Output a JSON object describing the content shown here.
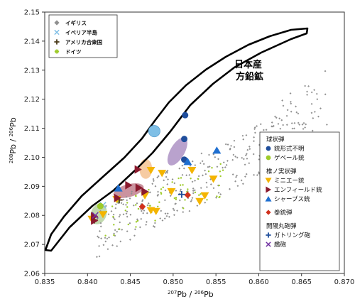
{
  "chart_data": {
    "type": "scatter",
    "title": "",
    "xlabel_sup": "207",
    "xlabel_mid": "Pb / ",
    "xlabel_sup2": "206",
    "xlabel_end": "Pb",
    "ylabel_sup": "208",
    "ylabel_mid": "Pb / ",
    "ylabel_sup2": "206",
    "ylabel_end": "Pb",
    "xlim": [
      0.835,
      0.87
    ],
    "ylim": [
      2.06,
      2.15
    ],
    "xticks": [
      "0.835",
      "0.840",
      "0.845",
      "0.850",
      "0.855",
      "0.860",
      "0.865",
      "0.870"
    ],
    "yticks": [
      "2.06",
      "2.07",
      "2.08",
      "2.09",
      "2.10",
      "2.11",
      "2.12",
      "2.13",
      "2.14",
      "2.15"
    ],
    "region_label_line1": "日本産",
    "region_label_line2": "方鉛鉱",
    "legend_top": [
      {
        "label": "イギリス",
        "color": "#909090",
        "marker": "diamond"
      },
      {
        "label": "イベリア半島",
        "color": "#7fbfe6",
        "marker": "x"
      },
      {
        "label": "アメリカ合衆国",
        "color": "#4a3a1a",
        "marker": "plus"
      },
      {
        "label": "ドイツ",
        "color": "#9ecb2a",
        "marker": "asterisk"
      }
    ],
    "legend_bottom": {
      "group1_title": "球状弾",
      "group1": [
        {
          "label": "銃形式不明",
          "color": "#1f4e9c",
          "marker": "circle"
        },
        {
          "label": "ゲベール銃",
          "color": "#9ecb2a",
          "marker": "circle"
        }
      ],
      "group2_title": "椎ノ実状弾",
      "group2": [
        {
          "label": "ミニエー銃",
          "color": "#f4b400",
          "marker": "triangle-down"
        },
        {
          "label": "エンフィールド銃",
          "color": "#8b1a2e",
          "marker": "triangle-right"
        },
        {
          "label": "シャープス銃",
          "color": "#1f6fd0",
          "marker": "triangle-up"
        }
      ],
      "group3": [
        {
          "label": "拳銃弾",
          "color": "#d0301c",
          "marker": "diamond"
        }
      ],
      "group4_title": "開陽丸砲弾",
      "group4": [
        {
          "label": "ガトリング砲",
          "color": "#1f4e9c",
          "marker": "plus"
        },
        {
          "label": "艦砲",
          "color": "#7030a0",
          "marker": "x"
        }
      ]
    },
    "series": [
      {
        "name": "イギリス",
        "color": "#909090",
        "marker": "diamond",
        "cluster": {
          "seed": 11,
          "n": 340
        }
      },
      {
        "name": "ドイツ",
        "color": "#9ecb2a",
        "marker": "asterisk",
        "cluster": {
          "seed": 29,
          "n": 60
        }
      },
      {
        "name": "イベリア半島",
        "color": "#7fbfe6",
        "marker": "x",
        "points": [
          [
            0.8418,
            2.0835
          ]
        ]
      },
      {
        "name": "アメリカ合衆国",
        "color": "#4a3a1a",
        "marker": "plus",
        "points": [
          [
            0.8408,
            2.0784
          ],
          [
            0.8437,
            2.0853
          ]
        ]
      },
      {
        "name": "銃形式不明",
        "color": "#1f4e9c",
        "marker": "circle",
        "points": [
          [
            0.8514,
            2.1145
          ],
          [
            0.8513,
            2.1063
          ],
          [
            0.8513,
            2.0992
          ]
        ]
      },
      {
        "name": "ゲベール銃",
        "color": "#9ecb2a",
        "marker": "circle",
        "points": [
          [
            0.8415,
            2.0832
          ]
        ]
      },
      {
        "name": "ミニエー銃",
        "color": "#f4b400",
        "marker": "triangle-down",
        "points": [
          [
            0.8474,
            2.0955
          ],
          [
            0.8487,
            2.0945
          ],
          [
            0.8498,
            2.0882
          ],
          [
            0.8522,
            2.0955
          ],
          [
            0.8547,
            2.0925
          ],
          [
            0.8537,
            2.0868
          ],
          [
            0.8531,
            2.0848
          ],
          [
            0.848,
            2.0814
          ],
          [
            0.8474,
            2.0817
          ],
          [
            0.8467,
            2.0868
          ],
          [
            0.8434,
            2.0855
          ],
          [
            0.8418,
            2.0803
          ],
          [
            0.8405,
            2.0787
          ]
        ]
      },
      {
        "name": "エンフィールド銃",
        "color": "#8b1a2e",
        "marker": "triangle-right",
        "points": [
          [
            0.8459,
            2.0958
          ],
          [
            0.8448,
            2.0904
          ],
          [
            0.846,
            2.0895
          ],
          [
            0.8467,
            2.0882
          ],
          [
            0.8435,
            2.086
          ],
          [
            0.8408,
            2.0782
          ],
          [
            0.8408,
            2.0797
          ]
        ]
      },
      {
        "name": "シャープス銃",
        "color": "#1f6fd0",
        "marker": "triangle-up",
        "points": [
          [
            0.8436,
            2.0894
          ],
          [
            0.8551,
            2.1024
          ],
          [
            0.8517,
            2.0985
          ]
        ]
      },
      {
        "name": "拳銃弾",
        "color": "#d0301c",
        "marker": "diamond",
        "points": [
          [
            0.8517,
            2.087
          ],
          [
            0.8464,
            2.083
          ]
        ]
      },
      {
        "name": "ガトリング砲",
        "color": "#1f4e9c",
        "marker": "plus",
        "points": [
          [
            0.851,
            2.0872
          ]
        ]
      },
      {
        "name": "艦砲",
        "color": "#7030a0",
        "marker": "x",
        "points": [
          [
            0.8409,
            2.08
          ]
        ]
      },
      {
        "name": "イベリア半島",
        "color": "#7fbfe6",
        "marker": "circle-large",
        "points": [
          [
            0.8478,
            2.109
          ]
        ]
      }
    ],
    "grid": false,
    "legend_position": "top-left and right"
  }
}
